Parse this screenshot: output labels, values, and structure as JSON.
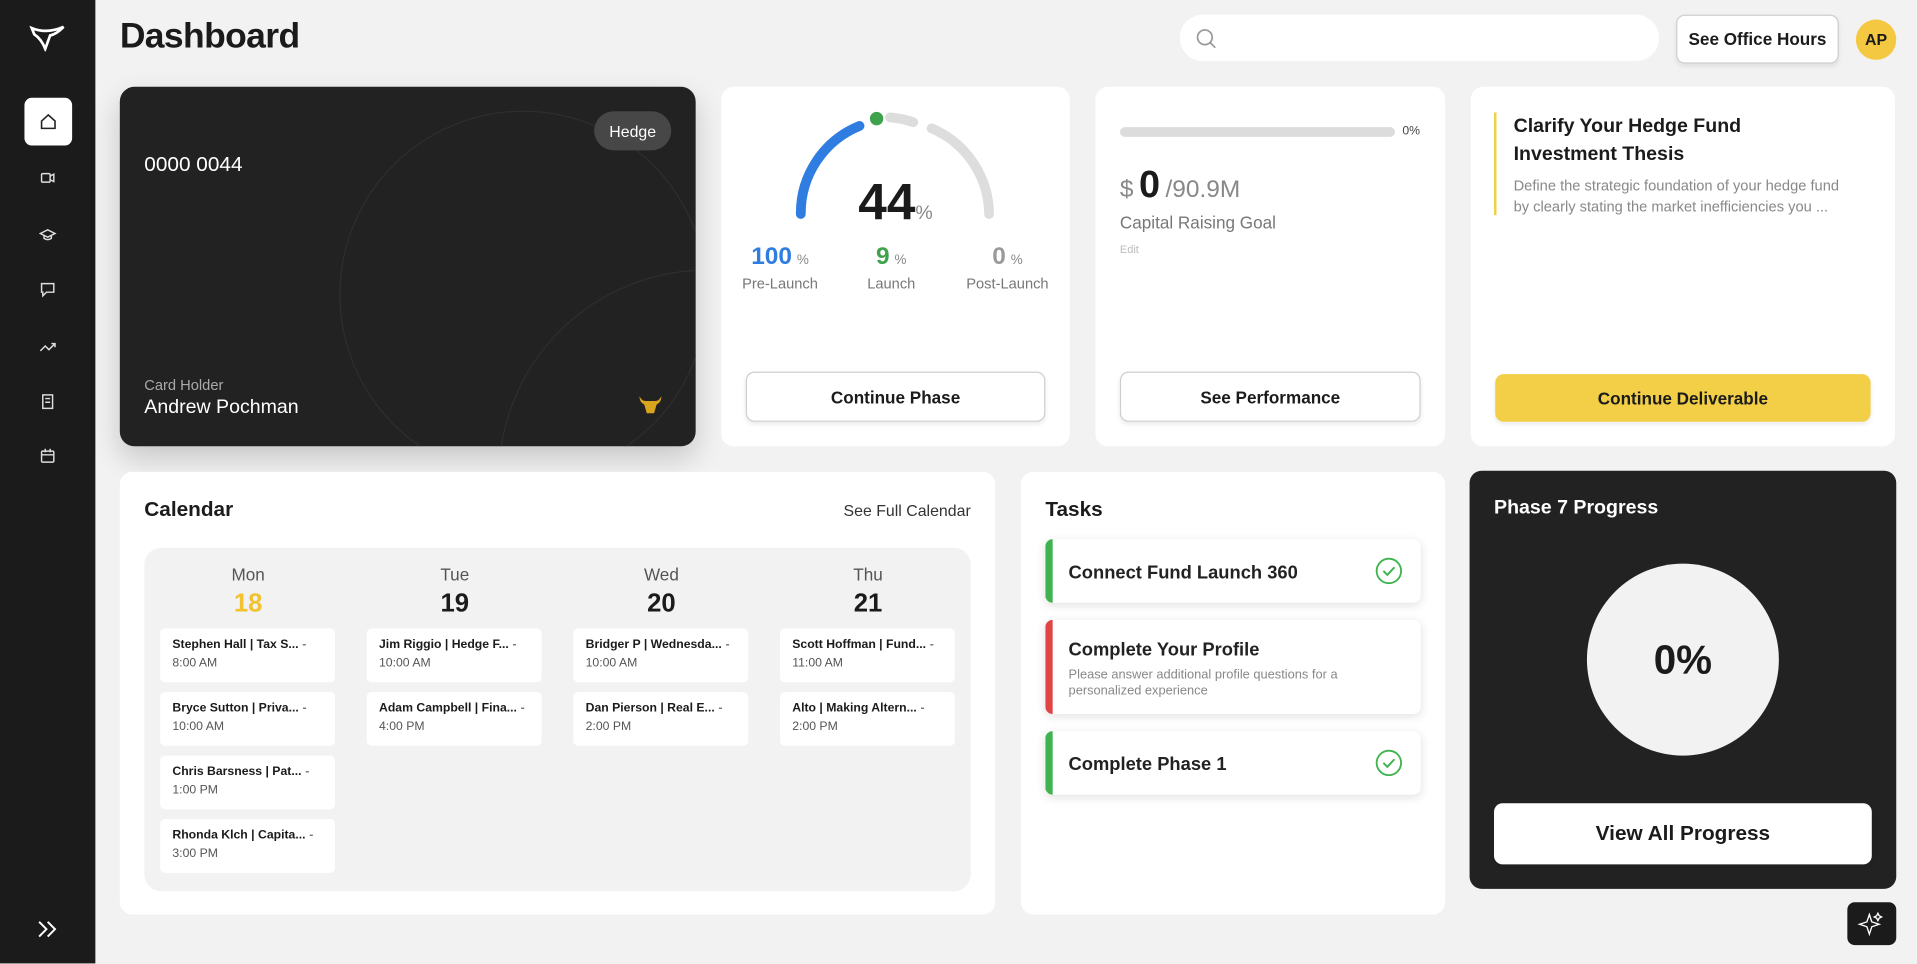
{
  "header": {
    "title": "Dashboard",
    "office_hours_button": "See Office Hours",
    "avatar": "AP"
  },
  "card": {
    "badge": "Hedge",
    "number": "0000 0044",
    "holder_label": "Card Holder",
    "holder_name": "Andrew Pochman"
  },
  "phase": {
    "percent": "44",
    "percent_unit": "%",
    "stats": [
      {
        "value": "100",
        "unit": "%",
        "label": "Pre-Launch",
        "color": "#2f7de1"
      },
      {
        "value": "9",
        "unit": "%",
        "label": "Launch",
        "color": "#3fa34d"
      },
      {
        "value": "0",
        "unit": "%",
        "label": "Post-Launch",
        "color": "#9a9a9a"
      }
    ],
    "button": "Continue Phase"
  },
  "capital": {
    "progress_label": "0%",
    "currency": "$",
    "amount": "0",
    "goal": "/90.9M",
    "label": "Capital Raising Goal",
    "edit": "Edit",
    "button": "See Performance"
  },
  "deliverable": {
    "title": "Clarify Your Hedge Fund Investment Thesis",
    "description": "Define the strategic foundation of your hedge fund by clearly stating the market inefficiencies you ...",
    "button": "Continue Deliverable"
  },
  "calendar": {
    "title": "Calendar",
    "link": "See Full Calendar",
    "days": [
      {
        "weekday": "Mon",
        "date": "18",
        "events": [
          {
            "title": "Stephen Hall | Tax S...",
            "dash": "-",
            "time": "8:00 AM"
          },
          {
            "title": "Bryce Sutton | Priva...",
            "dash": "-",
            "time": "10:00 AM"
          },
          {
            "title": "Chris Barsness | Pat...",
            "dash": "-",
            "time": "1:00 PM"
          },
          {
            "title": "Rhonda Klch | Capita...",
            "dash": "-",
            "time": "3:00 PM"
          }
        ]
      },
      {
        "weekday": "Tue",
        "date": "19",
        "events": [
          {
            "title": "Jim Riggio | Hedge F...",
            "dash": "-",
            "time": "10:00 AM"
          },
          {
            "title": "Adam Campbell | Fina...",
            "dash": "-",
            "time": "4:00 PM"
          }
        ]
      },
      {
        "weekday": "Wed",
        "date": "20",
        "events": [
          {
            "title": "Bridger P | Wednesda...",
            "dash": "-",
            "time": "10:00 AM"
          },
          {
            "title": "Dan Pierson | Real E...",
            "dash": "-",
            "time": "2:00 PM"
          }
        ]
      },
      {
        "weekday": "Thu",
        "date": "21",
        "events": [
          {
            "title": "Scott Hoffman | Fund...",
            "dash": "-",
            "time": "11:00 AM"
          },
          {
            "title": "Alto | Making Altern...",
            "dash": "-",
            "time": "2:00 PM"
          }
        ]
      }
    ]
  },
  "tasks": {
    "title": "Tasks",
    "items": [
      {
        "title": "Connect Fund Launch 360",
        "accent": "#3fb34f"
      },
      {
        "title": "Complete Your Profile",
        "description": "Please answer additional profile questions for a personalized experience",
        "accent": "#e04444"
      },
      {
        "title": "Complete Phase 1",
        "accent": "#3fb34f"
      }
    ]
  },
  "progress": {
    "title": "Phase 7 Progress",
    "percent": "0%",
    "button": "View All Progress"
  }
}
